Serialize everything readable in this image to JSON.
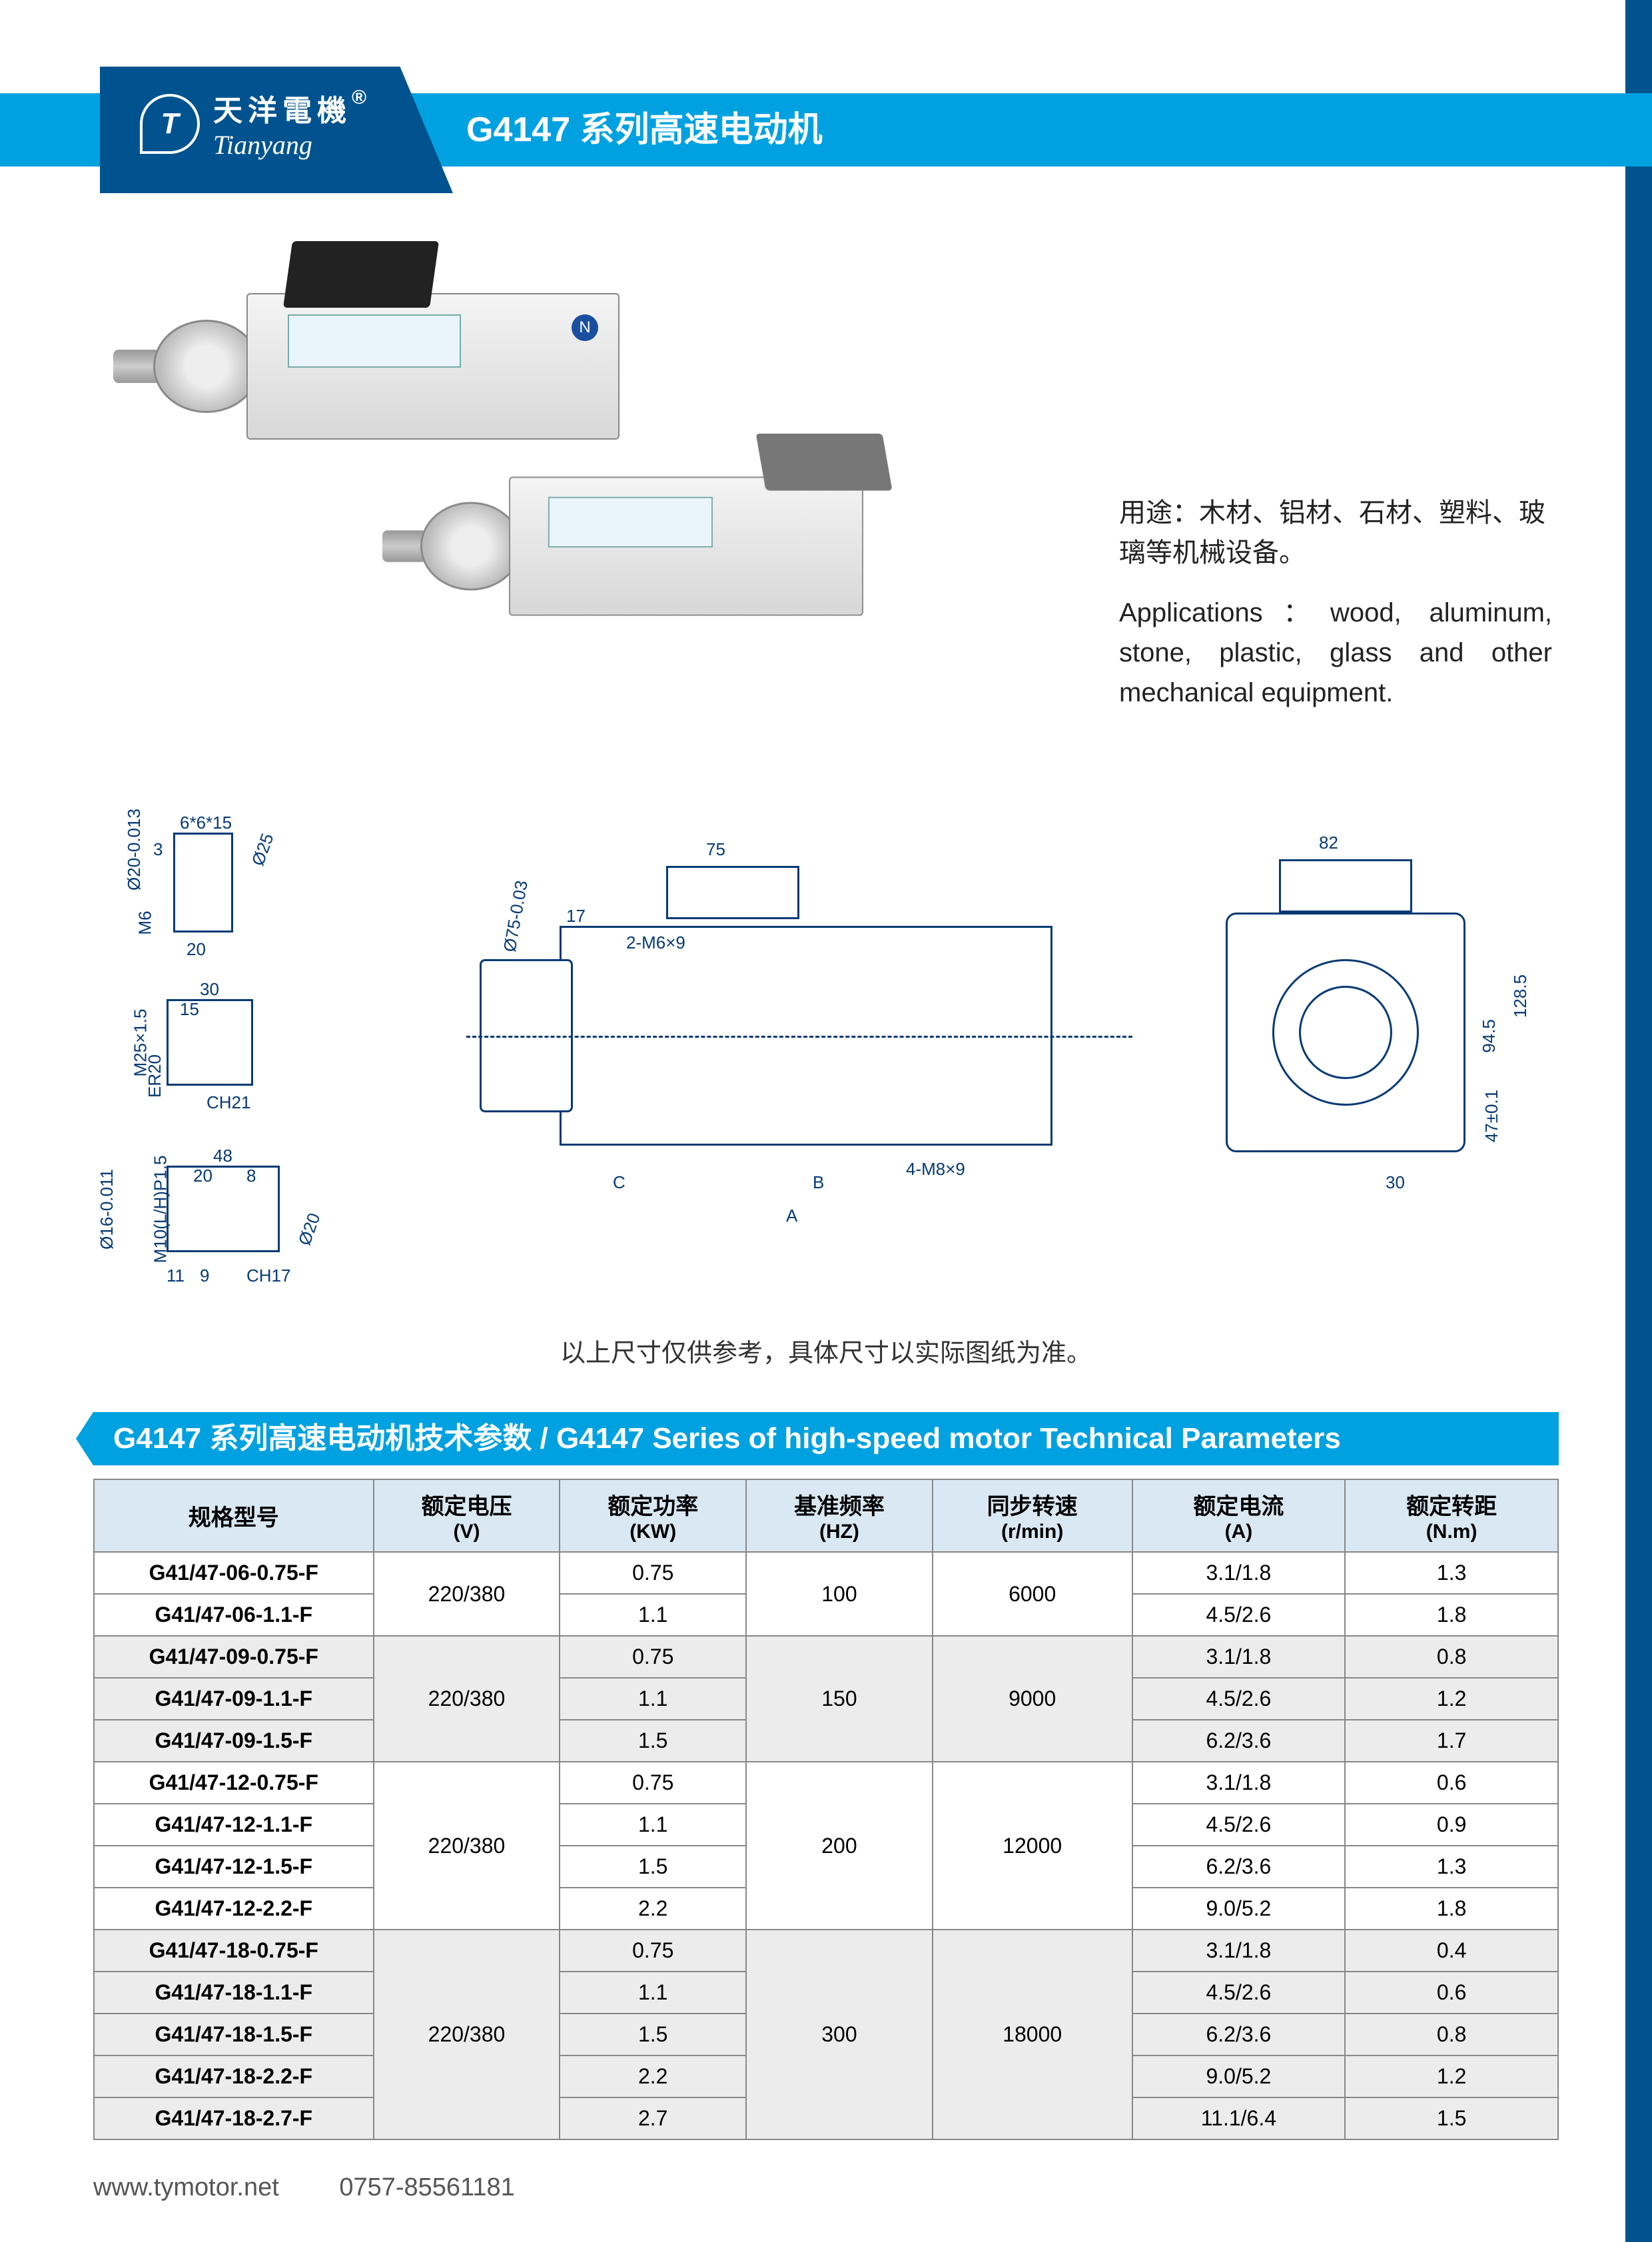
{
  "brand": {
    "cn": "天洋電機",
    "en": "Tianyang",
    "reg": "®"
  },
  "page_title": "G4147 系列高速电动机",
  "applications": {
    "cn": "用途：木材、铝材、石材、塑料、玻璃等机械设备。",
    "en": "Applications：wood, aluminum, stone, plastic, glass and other mechanical equipment."
  },
  "drawing_labels": {
    "d1": "Ø20-0.013",
    "d2": "6*6*15",
    "d3": "3",
    "d4": "Ø25",
    "d5": "M6",
    "d6": "20",
    "d7": "M25×1.5",
    "d8": "30",
    "d9": "15",
    "d10": "ER20",
    "d11": "CH21",
    "d12": "Ø16-0.011",
    "d13": "M10(L/H)P1.5",
    "d14": "48",
    "d15": "20",
    "d16": "8",
    "d17": "Ø20",
    "d18": "11",
    "d19": "9",
    "d20": "CH17",
    "m1": "75",
    "m2": "17",
    "m3": "Ø75-0.03",
    "m4": "2-M6×9",
    "m5": "C",
    "m6": "B",
    "m7": "A",
    "m8": "4-M8×9",
    "r1": "82",
    "r2": "128.5",
    "r3": "94.5",
    "r4": "47±0.1",
    "r5": "30"
  },
  "drawing_note": "以上尺寸仅供参考，具体尺寸以实际图纸为准。",
  "section_title": "G4147 系列高速电动机技术参数 / G4147 Series of high-speed motor Technical Parameters",
  "table": {
    "headers": [
      {
        "cn": "规格型号",
        "en": ""
      },
      {
        "cn": "额定电压",
        "en": "(V)"
      },
      {
        "cn": "额定功率",
        "en": "(KW)"
      },
      {
        "cn": "基准频率",
        "en": "(HZ)"
      },
      {
        "cn": "同步转速",
        "en": "(r/min)"
      },
      {
        "cn": "额定电流",
        "en": "(A)"
      },
      {
        "cn": "额定转距",
        "en": "(N.m)"
      }
    ],
    "groups": [
      {
        "voltage": "220/380",
        "hz": "100",
        "rpm": "6000",
        "shade": false,
        "rows": [
          {
            "model": "G41/47-06-0.75-F",
            "kw": "0.75",
            "amp": "3.1/1.8",
            "nm": "1.3"
          },
          {
            "model": "G41/47-06-1.1-F",
            "kw": "1.1",
            "amp": "4.5/2.6",
            "nm": "1.8"
          }
        ]
      },
      {
        "voltage": "220/380",
        "hz": "150",
        "rpm": "9000",
        "shade": true,
        "rows": [
          {
            "model": "G41/47-09-0.75-F",
            "kw": "0.75",
            "amp": "3.1/1.8",
            "nm": "0.8"
          },
          {
            "model": "G41/47-09-1.1-F",
            "kw": "1.1",
            "amp": "4.5/2.6",
            "nm": "1.2"
          },
          {
            "model": "G41/47-09-1.5-F",
            "kw": "1.5",
            "amp": "6.2/3.6",
            "nm": "1.7"
          }
        ]
      },
      {
        "voltage": "220/380",
        "hz": "200",
        "rpm": "12000",
        "shade": false,
        "rows": [
          {
            "model": "G41/47-12-0.75-F",
            "kw": "0.75",
            "amp": "3.1/1.8",
            "nm": "0.6"
          },
          {
            "model": "G41/47-12-1.1-F",
            "kw": "1.1",
            "amp": "4.5/2.6",
            "nm": "0.9"
          },
          {
            "model": "G41/47-12-1.5-F",
            "kw": "1.5",
            "amp": "6.2/3.6",
            "nm": "1.3"
          },
          {
            "model": "G41/47-12-2.2-F",
            "kw": "2.2",
            "amp": "9.0/5.2",
            "nm": "1.8"
          }
        ]
      },
      {
        "voltage": "220/380",
        "hz": "300",
        "rpm": "18000",
        "shade": true,
        "rows": [
          {
            "model": "G41/47-18-0.75-F",
            "kw": "0.75",
            "amp": "3.1/1.8",
            "nm": "0.4"
          },
          {
            "model": "G41/47-18-1.1-F",
            "kw": "1.1",
            "amp": "4.5/2.6",
            "nm": "0.6"
          },
          {
            "model": "G41/47-18-1.5-F",
            "kw": "1.5",
            "amp": "6.2/3.6",
            "nm": "0.8"
          },
          {
            "model": "G41/47-18-2.2-F",
            "kw": "2.2",
            "amp": "9.0/5.2",
            "nm": "1.2"
          },
          {
            "model": "G41/47-18-2.7-F",
            "kw": "2.7",
            "amp": "11.1/6.4",
            "nm": "1.5"
          }
        ]
      }
    ]
  },
  "footer": {
    "url": "www.tymotor.net",
    "phone": "0757-85561181"
  },
  "colors": {
    "header_blue": "#00a1e0",
    "dark_blue": "#00538f",
    "line": "#063a74",
    "thead_bg": "#d9e8f2",
    "grey_row": "#ececec"
  }
}
